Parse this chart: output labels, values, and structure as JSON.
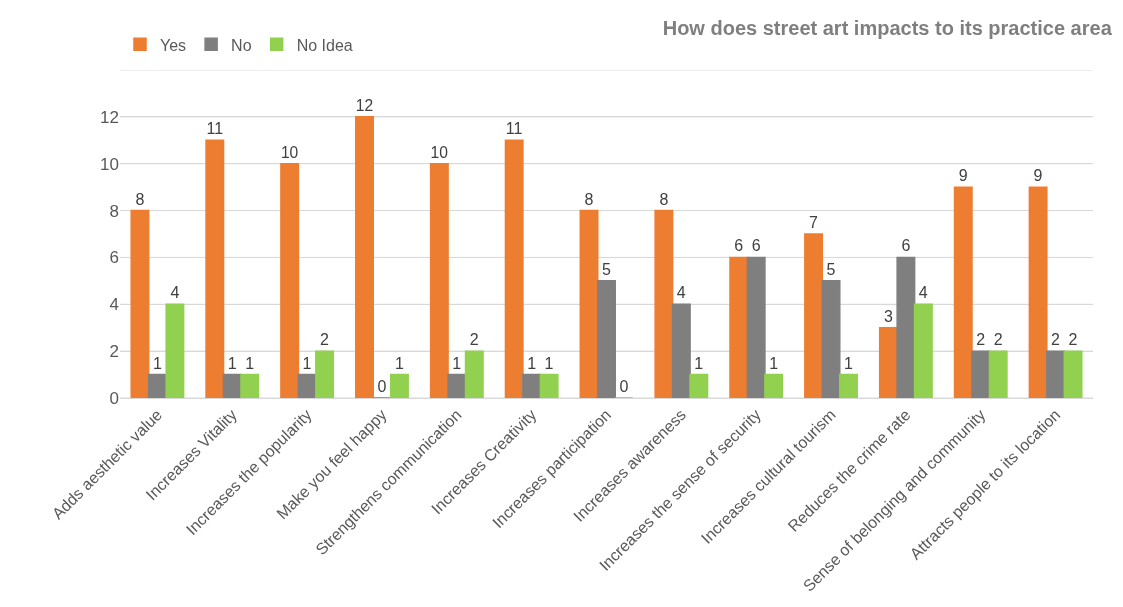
{
  "chart_data": {
    "type": "bar",
    "title": "How does street art impacts to its practice area",
    "categories": [
      "Adds aesthetic value",
      "Increases Vitality",
      "Increases the popularity",
      "Make you feel happy",
      "Strengthens communication",
      "Increases Creativity",
      "Increases participation",
      "Increases awareness",
      "Increases the sense of security",
      "Increases cultural tourism",
      "Reduces the crime rate",
      "Sense of belonging and community",
      "Attracts people to its location"
    ],
    "series": [
      {
        "name": "Yes",
        "color": "#ed7d31",
        "values": [
          8,
          11,
          10,
          12,
          10,
          11,
          8,
          8,
          6,
          7,
          3,
          9,
          9
        ]
      },
      {
        "name": "No",
        "color": "#7f7f7f",
        "values": [
          1,
          1,
          1,
          0,
          1,
          1,
          5,
          4,
          6,
          5,
          6,
          2,
          2
        ]
      },
      {
        "name": "No Idea",
        "color": "#92d050",
        "values": [
          4,
          1,
          2,
          1,
          2,
          1,
          0,
          1,
          1,
          1,
          4,
          2,
          2
        ]
      }
    ],
    "ylim": [
      0,
      14
    ],
    "yticks": [
      0,
      2,
      4,
      6,
      8,
      10,
      12,
      {
        "value": 14,
        "label": null
      }
    ],
    "grid": "y",
    "legend": "top left",
    "data_labels": true
  }
}
